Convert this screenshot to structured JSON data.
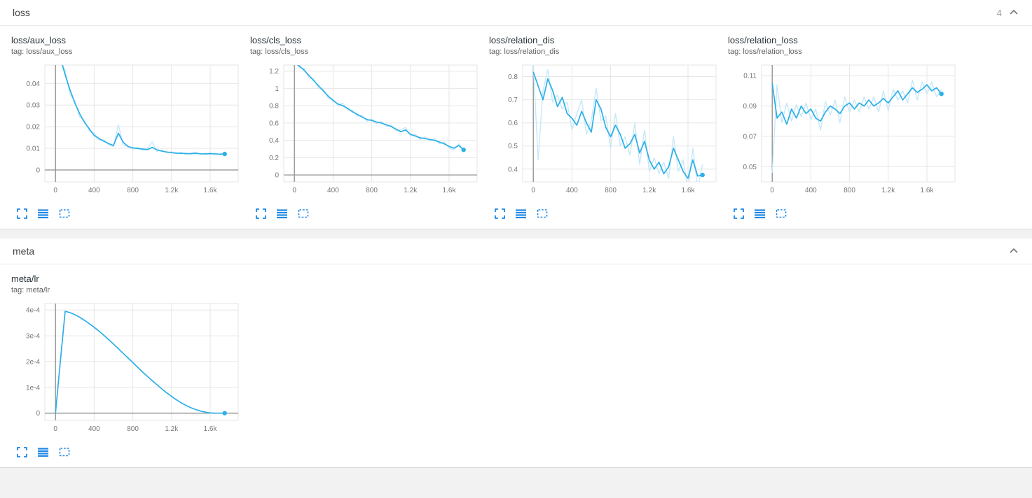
{
  "colors": {
    "line": "#2bb0e8",
    "raw": "#c3e7f8",
    "grid": "#e6e6e6",
    "zero": "#8f8f8f",
    "icon": "#1e88e5",
    "chevron": "#757575"
  },
  "steps": [
    0,
    50,
    100,
    150,
    200,
    250,
    300,
    350,
    400,
    450,
    500,
    550,
    600,
    650,
    700,
    750,
    800,
    850,
    900,
    950,
    1000,
    1050,
    1100,
    1150,
    1200,
    1250,
    1300,
    1350,
    1400,
    1450,
    1500,
    1550,
    1600,
    1650,
    1700,
    1750
  ],
  "sections": [
    {
      "title": "loss",
      "count": "4",
      "charts": [
        {
          "type": "line",
          "title": "loss/aux_loss",
          "tag": "tag: loss/aux_loss",
          "xlim": [
            -110,
            1890
          ],
          "ylim": [
            -0.0055,
            0.0485
          ],
          "x_tick_values": [
            0,
            400,
            800,
            1200,
            1600
          ],
          "x_tick_labels": [
            "0",
            "400",
            "800",
            "1.2k",
            "1.6k"
          ],
          "y_tick_values": [
            0,
            0.01,
            0.02,
            0.03,
            0.04
          ],
          "y_tick_labels": [
            "0",
            "0.01",
            "0.02",
            "0.03",
            "0.04"
          ],
          "raw": [
            0.063,
            0.05,
            0.046,
            0.035,
            0.032,
            0.0245,
            0.023,
            0.018,
            0.017,
            0.0138,
            0.014,
            0.0115,
            0.0108,
            0.021,
            0.0115,
            0.0112,
            0.0096,
            0.0104,
            0.0091,
            0.0099,
            0.013,
            0.0086,
            0.0092,
            0.0079,
            0.0085,
            0.0074,
            0.0081,
            0.0072,
            0.0079,
            0.0082,
            0.0071,
            0.0078,
            0.0071,
            0.0079,
            0.007,
            0.0078
          ],
          "smoothed": [
            0.06,
            0.052,
            0.044,
            0.037,
            0.031,
            0.026,
            0.022,
            0.019,
            0.016,
            0.0145,
            0.0133,
            0.0122,
            0.0113,
            0.017,
            0.0128,
            0.0108,
            0.0102,
            0.0099,
            0.0097,
            0.0094,
            0.0104,
            0.0093,
            0.0087,
            0.0083,
            0.008,
            0.0078,
            0.0077,
            0.0076,
            0.0075,
            0.0077,
            0.0075,
            0.0074,
            0.0076,
            0.0074,
            0.0073,
            0.0074
          ]
        },
        {
          "type": "line",
          "title": "loss/cls_loss",
          "tag": "tag: loss/cls_loss",
          "xlim": [
            -110,
            1890
          ],
          "ylim": [
            -0.08,
            1.27
          ],
          "x_tick_values": [
            0,
            400,
            800,
            1200,
            1600
          ],
          "x_tick_labels": [
            "0",
            "400",
            "800",
            "1.2k",
            "1.6k"
          ],
          "y_tick_values": [
            0,
            0.2,
            0.4,
            0.6,
            0.8,
            1,
            1.2
          ],
          "y_tick_labels": [
            "0",
            "0.2",
            "0.4",
            "0.6",
            "0.8",
            "1",
            "1.2"
          ],
          "raw": [
            1.33,
            1.24,
            1.23,
            1.12,
            1.11,
            1.0,
            0.99,
            0.89,
            0.88,
            0.8,
            0.83,
            0.75,
            0.75,
            0.68,
            0.69,
            0.62,
            0.65,
            0.59,
            0.62,
            0.56,
            0.58,
            0.51,
            0.52,
            0.55,
            0.45,
            0.47,
            0.41,
            0.44,
            0.39,
            0.42,
            0.36,
            0.38,
            0.31,
            0.29,
            0.36,
            0.27
          ],
          "smoothed": [
            1.3,
            1.26,
            1.21,
            1.15,
            1.09,
            1.03,
            0.97,
            0.91,
            0.86,
            0.82,
            0.8,
            0.77,
            0.73,
            0.7,
            0.67,
            0.64,
            0.63,
            0.61,
            0.6,
            0.58,
            0.56,
            0.53,
            0.5,
            0.52,
            0.47,
            0.45,
            0.43,
            0.42,
            0.41,
            0.4,
            0.38,
            0.36,
            0.33,
            0.31,
            0.34,
            0.29
          ]
        },
        {
          "type": "line",
          "title": "loss/relation_dis",
          "tag": "tag: loss/relation_dis",
          "xlim": [
            -110,
            1890
          ],
          "ylim": [
            0.345,
            0.85
          ],
          "x_tick_values": [
            0,
            400,
            800,
            1200,
            1600
          ],
          "x_tick_labels": [
            "0",
            "400",
            "800",
            "1.2k",
            "1.6k"
          ],
          "y_tick_values": [
            0.4,
            0.5,
            0.6,
            0.7,
            0.8
          ],
          "y_tick_labels": [
            "0.4",
            "0.5",
            "0.6",
            "0.7",
            "0.8"
          ],
          "raw": [
            0.85,
            0.44,
            0.74,
            0.83,
            0.69,
            0.72,
            0.66,
            0.69,
            0.57,
            0.64,
            0.7,
            0.55,
            0.61,
            0.75,
            0.61,
            0.63,
            0.49,
            0.64,
            0.5,
            0.54,
            0.46,
            0.6,
            0.42,
            0.57,
            0.39,
            0.45,
            0.38,
            0.43,
            0.36,
            0.54,
            0.39,
            0.44,
            0.31,
            0.49,
            0.32,
            0.42
          ],
          "smoothed": [
            0.82,
            0.76,
            0.7,
            0.79,
            0.74,
            0.67,
            0.71,
            0.64,
            0.62,
            0.59,
            0.65,
            0.6,
            0.56,
            0.7,
            0.66,
            0.58,
            0.54,
            0.59,
            0.55,
            0.49,
            0.51,
            0.55,
            0.47,
            0.52,
            0.44,
            0.4,
            0.43,
            0.38,
            0.41,
            0.49,
            0.44,
            0.39,
            0.36,
            0.44,
            0.37,
            0.375
          ]
        },
        {
          "type": "line",
          "title": "loss/relation_loss",
          "tag": "tag: loss/relation_loss",
          "xlim": [
            -110,
            1890
          ],
          "ylim": [
            0.04,
            0.117
          ],
          "x_tick_values": [
            0,
            400,
            800,
            1200,
            1600
          ],
          "x_tick_labels": [
            "0",
            "400",
            "800",
            "1.2k",
            "1.6k"
          ],
          "y_tick_values": [
            0.05,
            0.07,
            0.09,
            0.11
          ],
          "y_tick_labels": [
            "0.05",
            "0.07",
            "0.09",
            "0.11"
          ],
          "raw": [
            0.046,
            0.104,
            0.079,
            0.092,
            0.08,
            0.091,
            0.083,
            0.092,
            0.081,
            0.088,
            0.074,
            0.093,
            0.084,
            0.094,
            0.079,
            0.096,
            0.086,
            0.094,
            0.086,
            0.096,
            0.088,
            0.096,
            0.086,
            0.1,
            0.087,
            0.101,
            0.094,
            0.1,
            0.092,
            0.107,
            0.094,
            0.106,
            0.098,
            0.106,
            0.096,
            0.101
          ],
          "smoothed": [
            0.105,
            0.082,
            0.086,
            0.078,
            0.088,
            0.082,
            0.09,
            0.085,
            0.088,
            0.082,
            0.08,
            0.086,
            0.09,
            0.088,
            0.085,
            0.09,
            0.092,
            0.088,
            0.092,
            0.09,
            0.094,
            0.09,
            0.092,
            0.095,
            0.092,
            0.096,
            0.1,
            0.094,
            0.098,
            0.102,
            0.099,
            0.101,
            0.104,
            0.1,
            0.102,
            0.098
          ]
        }
      ]
    },
    {
      "title": "meta",
      "count": "",
      "charts": [
        {
          "type": "line",
          "title": "meta/lr",
          "tag": "tag: meta/lr",
          "xlim": [
            -110,
            1890
          ],
          "ylim": [
            -2.8e-05,
            0.000425
          ],
          "x_tick_values": [
            0,
            400,
            800,
            1200,
            1600
          ],
          "x_tick_labels": [
            "0",
            "400",
            "800",
            "1.2k",
            "1.6k"
          ],
          "y_tick_values": [
            0,
            0.0001,
            0.0002,
            0.0003,
            0.0004
          ],
          "y_tick_labels": [
            "0",
            "1e-4",
            "2e-4",
            "3e-4",
            "4e-4"
          ],
          "raw": null,
          "smoothed": [
            0.0,
            0.0002,
            0.000395,
            0.00039,
            0.000382,
            0.000372,
            0.00036,
            0.000347,
            0.000333,
            0.000318,
            0.000302,
            0.000285,
            0.000268,
            0.00025,
            0.000232,
            0.000214,
            0.000196,
            0.000178,
            0.00016,
            0.000143,
            0.000126,
            0.00011,
            9.4e-05,
            7.9e-05,
            6.5e-05,
            5.2e-05,
            4e-05,
            3e-05,
            2.1e-05,
            1.4e-05,
            8e-06,
            4e-06,
            1e-06,
            0.0,
            0.0,
            0.0
          ]
        }
      ]
    }
  ]
}
